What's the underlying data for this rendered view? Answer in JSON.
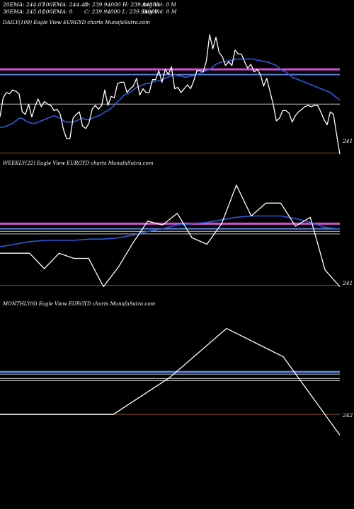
{
  "header": {
    "ema20": "20EMA: 244.07",
    "ema100": "100EMA: 244.43",
    "open_high": "O: 239.94000 H: 239.94000",
    "avg_vol": "Avg Vol: 0  M",
    "ema30": "30EMA: 245.01",
    "ema200": "200EMA: 0",
    "close_low": "C: 239.94000 L: 239.94000",
    "day_vol": "Day Vol: 0  M"
  },
  "colors": {
    "background": "#000000",
    "price": "#ffffff",
    "ema_fast": "#2a5bd7",
    "band_magenta": "#d050d0",
    "band_blue": "#5a7fd8",
    "support": "#8b4a1e"
  },
  "chart_data": [
    {
      "type": "line",
      "title": "DAILY(108) Eagle  View  EURGYD charts MunafaSutra.com",
      "price_label": "241",
      "ylim": [
        239.6,
        250.6
      ],
      "series": [
        {
          "values": [
            243.7,
            245.2,
            245.6,
            245.5,
            245.8,
            245.7,
            245.5,
            244.1,
            243.9,
            244.7,
            243.7,
            244.5,
            245.1,
            244.5,
            244.9,
            244.7,
            244.6,
            244.2,
            244.3,
            243.9,
            242.7,
            242.0,
            242.0,
            243.6,
            243.9,
            244.1,
            243.0,
            242.8,
            243.2,
            244.3,
            244.6,
            244.3,
            244.6,
            245.8,
            244.6,
            245.3,
            245.2,
            246.3,
            246.4,
            246.4,
            245.6,
            245.9,
            246.1,
            246.7,
            245.4,
            245.9,
            245.6,
            245.6,
            246.6,
            246.6,
            247.3,
            246.4,
            247.4,
            247.0,
            247.6,
            245.9,
            246.0,
            245.6,
            245.9,
            246.2,
            245.9,
            246.5,
            247.3,
            247.3,
            247.2,
            248.1,
            250.1,
            249.0,
            249.9,
            248.7,
            248.4,
            247.7,
            248.0,
            247.7,
            248.9,
            248.6,
            248.6,
            248.0,
            247.5,
            247.8,
            247.2,
            247.4,
            247.0,
            246.1,
            246.7,
            245.7,
            244.7,
            243.4,
            243.6,
            244.2,
            244.2,
            244.0,
            243.3,
            243.8,
            244.1,
            244.3,
            244.5,
            244.6,
            244.5,
            244.6,
            244.6,
            244.1,
            243.5,
            243.1,
            244.1,
            243.9,
            242.3,
            240.8
          ]
        },
        {
          "values": [
            242.9,
            242.9,
            243.0,
            243.1,
            243.2,
            243.4,
            243.6,
            243.6,
            243.4,
            243.3,
            243.2,
            243.2,
            243.3,
            243.4,
            243.5,
            243.6,
            243.7,
            243.8,
            243.7,
            243.6,
            243.4,
            243.3,
            243.3,
            243.3,
            243.4,
            243.5,
            243.6,
            243.5,
            243.5,
            243.6,
            243.7,
            243.8,
            243.9,
            244.1,
            244.2,
            244.4,
            244.6,
            244.9,
            245.1,
            245.4,
            245.5,
            245.6,
            245.8,
            246.0,
            246.1,
            246.2,
            246.3,
            246.3,
            246.4,
            246.5,
            246.5,
            246.6,
            246.7,
            246.8,
            246.9,
            247.0,
            246.9,
            246.9,
            246.8,
            246.8,
            246.9,
            246.9,
            247.0,
            247.1,
            247.2,
            247.3,
            247.4,
            247.6,
            247.8,
            247.9,
            248.0,
            248.0,
            248.1,
            248.1,
            248.2,
            248.2,
            248.2,
            248.2,
            248.2,
            248.2,
            248.2,
            248.1,
            248.1,
            248.0,
            248.0,
            247.9,
            247.8,
            247.7,
            247.5,
            247.3,
            247.2,
            247.0,
            246.8,
            246.7,
            246.6,
            246.5,
            246.4,
            246.3,
            246.2,
            246.1,
            246.0,
            245.9,
            245.8,
            245.7,
            245.6,
            245.4,
            245.2,
            245.0
          ]
        }
      ],
      "bands": [
        247.4,
        247.0,
        244.7,
        240.9
      ]
    },
    {
      "type": "line",
      "title": "WEEKLY(22) Eagle  View  EURGYD charts MunafaSutra.com",
      "price_label": "241",
      "ylim": [
        239.6,
        250.6
      ],
      "series": [
        {
          "values": [
            244.1,
            244.1,
            244.1,
            242.9,
            244.1,
            243.7,
            243.7,
            241.5,
            243.0,
            244.9,
            246.6,
            246.3,
            247.2,
            245.3,
            244.8,
            246.4,
            249.4,
            247.0,
            248.0,
            248.0,
            246.2,
            246.9,
            242.8,
            241.5
          ]
        },
        {
          "values": [
            244.6,
            244.8,
            245.0,
            245.1,
            245.1,
            245.1,
            245.2,
            245.2,
            245.3,
            245.5,
            245.8,
            246.0,
            246.3,
            246.4,
            246.5,
            246.7,
            246.9,
            247.0,
            247.0,
            247.0,
            246.8,
            246.5,
            246.1,
            246.0
          ]
        }
      ],
      "bands": [
        246.4,
        246.0,
        245.8,
        245.6,
        241.6
      ]
    },
    {
      "type": "line",
      "title": "MONTHLY(6) Eagle  View  EURGYD charts MunafaSutra.com",
      "price_label": "242",
      "ylim": [
        240.0,
        253.0
      ],
      "series": [
        {
          "values": [
            243.5,
            243.5,
            243.5,
            246.9,
            251.4,
            248.8,
            241.6
          ]
        }
      ],
      "bands": [
        247.4,
        247.2,
        246.8,
        246.6,
        243.5
      ]
    }
  ]
}
